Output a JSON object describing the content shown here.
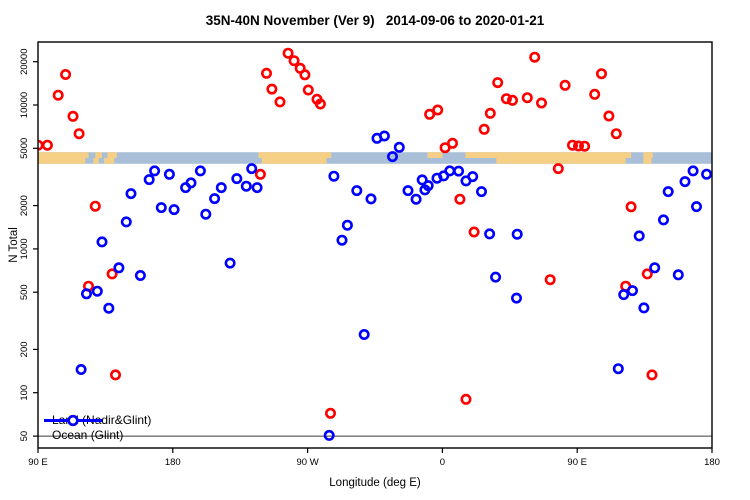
{
  "title": "35N-40N November (Ver 9)   2014-09-06 to 2020-01-21",
  "chart_data": {
    "type": "scatter",
    "title": "35N-40N November (Ver 9)   2014-09-06 to 2020-01-21",
    "xlabel": "Longitude (deg E)",
    "ylabel": "N Total",
    "y_scale": "log",
    "ylim": [
      41.3,
      27400
    ],
    "grid": "off",
    "legend_position": "bottom-left",
    "x_ticks": [
      {
        "f": 0.0,
        "label": "90 E"
      },
      {
        "f": 0.2,
        "label": "180"
      },
      {
        "f": 0.4,
        "label": "90 W"
      },
      {
        "f": 0.6,
        "label": "0"
      },
      {
        "f": 0.8,
        "label": "90 E"
      },
      {
        "f": 1.0,
        "label": "180"
      }
    ],
    "y_ticks": [
      {
        "v": 50,
        "label": "50"
      },
      {
        "v": 100,
        "label": "100"
      },
      {
        "v": 200,
        "label": "200"
      },
      {
        "v": 500,
        "label": "500"
      },
      {
        "v": 1000,
        "label": "1000"
      },
      {
        "v": 2000,
        "label": "2000"
      },
      {
        "v": 5000,
        "label": "5000"
      },
      {
        "v": 10000,
        "label": "10000"
      },
      {
        "v": 20000,
        "label": "20000"
      }
    ],
    "reference_line": {
      "value": 50,
      "color": "#3c3c3c"
    },
    "map_band": {
      "value_top": 4700,
      "value_bottom": 3900,
      "land_color": "#f6cf87",
      "ocean_color": "#a9bfd8",
      "rows": [
        {
          "name": "north-40N",
          "land_segments": [
            [
              0.0,
              0.075
            ],
            [
              0.085,
              0.095
            ],
            [
              0.103,
              0.117
            ],
            [
              0.327,
              0.435
            ],
            [
              0.578,
              0.6
            ],
            [
              0.634,
              0.88
            ],
            [
              0.898,
              0.912
            ]
          ]
        },
        {
          "name": "south-35N",
          "land_segments": [
            [
              0.0,
              0.07
            ],
            [
              0.082,
              0.09
            ],
            [
              0.098,
              0.113
            ],
            [
              0.332,
              0.428
            ],
            [
              0.68,
              0.872
            ],
            [
              0.898,
              0.91
            ]
          ]
        }
      ]
    },
    "series": [
      {
        "name": "Land (Nadir&Glint)",
        "color": "#ff0000",
        "points": [
          [
            0.0,
            5250
          ],
          [
            0.014,
            5250
          ],
          [
            0.03,
            11700
          ],
          [
            0.041,
            16300
          ],
          [
            0.052,
            8350
          ],
          [
            0.061,
            6320
          ],
          [
            0.075,
            550
          ],
          [
            0.085,
            1980
          ],
          [
            0.11,
            670
          ],
          [
            0.115,
            133
          ],
          [
            0.33,
            3300
          ],
          [
            0.339,
            16600
          ],
          [
            0.347,
            12900
          ],
          [
            0.359,
            10500
          ],
          [
            0.371,
            22900
          ],
          [
            0.38,
            20300
          ],
          [
            0.389,
            18000
          ],
          [
            0.396,
            16200
          ],
          [
            0.401,
            12700
          ],
          [
            0.414,
            10950
          ],
          [
            0.419,
            10160
          ],
          [
            0.434,
            72
          ],
          [
            0.581,
            8620
          ],
          [
            0.593,
            9230
          ],
          [
            0.604,
            5050
          ],
          [
            0.615,
            5420
          ],
          [
            0.626,
            2215
          ],
          [
            0.635,
            90
          ],
          [
            0.647,
            1310
          ],
          [
            0.662,
            6780
          ],
          [
            0.671,
            8760
          ],
          [
            0.682,
            14300
          ],
          [
            0.695,
            11060
          ],
          [
            0.704,
            10780
          ],
          [
            0.726,
            11240
          ],
          [
            0.737,
            21500
          ],
          [
            0.747,
            10330
          ],
          [
            0.76,
            610
          ],
          [
            0.772,
            3610
          ],
          [
            0.782,
            13700
          ],
          [
            0.793,
            5250
          ],
          [
            0.802,
            5190
          ],
          [
            0.811,
            5170
          ],
          [
            0.826,
            11870
          ],
          [
            0.836,
            16500
          ],
          [
            0.847,
            8390
          ],
          [
            0.858,
            6320
          ],
          [
            0.872,
            550
          ],
          [
            0.88,
            1960
          ],
          [
            0.904,
            670
          ],
          [
            0.911,
            133
          ]
        ]
      },
      {
        "name": "Ocean (Glint)",
        "color": "#0000ff",
        "points": [
          [
            0.064,
            145
          ],
          [
            0.072,
            487
          ],
          [
            0.088,
            508
          ],
          [
            0.095,
            1118
          ],
          [
            0.105,
            387
          ],
          [
            0.12,
            738
          ],
          [
            0.131,
            1540
          ],
          [
            0.138,
            2420
          ],
          [
            0.152,
            653
          ],
          [
            0.165,
            3030
          ],
          [
            0.173,
            3480
          ],
          [
            0.183,
            1935
          ],
          [
            0.195,
            3300
          ],
          [
            0.202,
            1874
          ],
          [
            0.219,
            2664
          ],
          [
            0.227,
            2873
          ],
          [
            0.241,
            3480
          ],
          [
            0.249,
            1742
          ],
          [
            0.262,
            2235
          ],
          [
            0.272,
            2664
          ],
          [
            0.285,
            796
          ],
          [
            0.295,
            3078
          ],
          [
            0.309,
            2725
          ],
          [
            0.317,
            3610
          ],
          [
            0.325,
            2664
          ],
          [
            0.432,
            50.5
          ],
          [
            0.439,
            3200
          ],
          [
            0.451,
            1149
          ],
          [
            0.459,
            1461
          ],
          [
            0.473,
            2540
          ],
          [
            0.484,
            254
          ],
          [
            0.494,
            2224
          ],
          [
            0.503,
            5870
          ],
          [
            0.514,
            6090
          ],
          [
            0.526,
            4375
          ],
          [
            0.536,
            5080
          ],
          [
            0.549,
            2540
          ],
          [
            0.561,
            2213
          ],
          [
            0.57,
            3015
          ],
          [
            0.574,
            2569
          ],
          [
            0.579,
            2751
          ],
          [
            0.592,
            3098
          ],
          [
            0.602,
            3213
          ],
          [
            0.611,
            3482
          ],
          [
            0.624,
            3470
          ],
          [
            0.635,
            2966
          ],
          [
            0.645,
            3178
          ],
          [
            0.658,
            2500
          ],
          [
            0.67,
            1271
          ],
          [
            0.679,
            636
          ],
          [
            0.71,
            455
          ],
          [
            0.711,
            1265
          ],
          [
            0.861,
            147
          ],
          [
            0.869,
            481
          ],
          [
            0.882,
            513
          ],
          [
            0.892,
            1231
          ],
          [
            0.899,
            389
          ],
          [
            0.915,
            738
          ],
          [
            0.928,
            1590
          ],
          [
            0.935,
            2500
          ],
          [
            0.95,
            660
          ],
          [
            0.96,
            2934
          ],
          [
            0.972,
            3482
          ],
          [
            0.977,
            1967
          ],
          [
            0.992,
            3302
          ]
        ]
      }
    ]
  },
  "legend": {
    "items": [
      {
        "label": "Land (Nadir&Glint)"
      },
      {
        "label": "Ocean (Glint)"
      }
    ]
  }
}
